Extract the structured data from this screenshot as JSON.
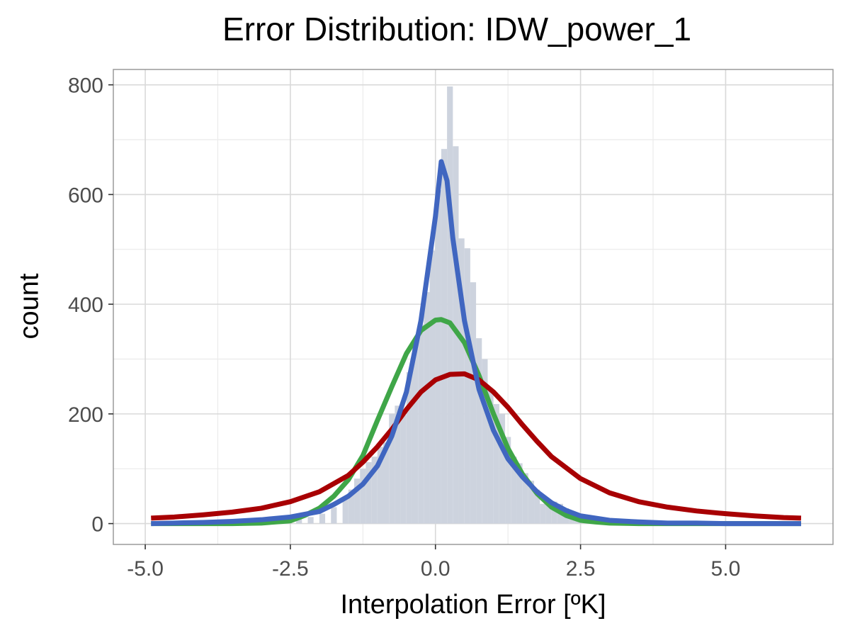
{
  "chart_data": {
    "type": "bar",
    "title": "Error Distribution: IDW_power_1",
    "xlabel": "Interpolation Error [ºK]",
    "ylabel": "count",
    "xlim": [
      -5.55,
      6.85
    ],
    "ylim": [
      -38,
      828
    ],
    "xticks": [
      -5.0,
      -2.5,
      0.0,
      2.5,
      5.0
    ],
    "xtick_labels": [
      "-5.0",
      "-2.5",
      "0.0",
      "2.5",
      "5.0"
    ],
    "yticks": [
      0,
      200,
      400,
      600,
      800
    ],
    "ytick_labels": [
      "0",
      "200",
      "400",
      "600",
      "800"
    ],
    "grid": true,
    "histogram": {
      "bin_width": 0.1,
      "color": "#cdd3de",
      "bins": [
        {
          "x": -3.45,
          "count": 2
        },
        {
          "x": -3.15,
          "count": 3
        },
        {
          "x": -2.85,
          "count": 4
        },
        {
          "x": -2.55,
          "count": 6
        },
        {
          "x": -2.35,
          "count": 9
        },
        {
          "x": -2.15,
          "count": 12
        },
        {
          "x": -1.95,
          "count": 18
        },
        {
          "x": -1.75,
          "count": 30
        },
        {
          "x": -1.55,
          "count": 48
        },
        {
          "x": -1.45,
          "count": 62
        },
        {
          "x": -1.35,
          "count": 82
        },
        {
          "x": -1.25,
          "count": 100
        },
        {
          "x": -1.15,
          "count": 112
        },
        {
          "x": -1.05,
          "count": 122
        },
        {
          "x": -0.95,
          "count": 140
        },
        {
          "x": -0.85,
          "count": 148
        },
        {
          "x": -0.75,
          "count": 200
        },
        {
          "x": -0.65,
          "count": 215
        },
        {
          "x": -0.55,
          "count": 198
        },
        {
          "x": -0.45,
          "count": 276
        },
        {
          "x": -0.35,
          "count": 323
        },
        {
          "x": -0.25,
          "count": 363
        },
        {
          "x": -0.15,
          "count": 422
        },
        {
          "x": -0.05,
          "count": 498
        },
        {
          "x": 0.05,
          "count": 608
        },
        {
          "x": 0.15,
          "count": 683
        },
        {
          "x": 0.25,
          "count": 797
        },
        {
          "x": 0.35,
          "count": 688
        },
        {
          "x": 0.45,
          "count": 520
        },
        {
          "x": 0.55,
          "count": 502
        },
        {
          "x": 0.65,
          "count": 440
        },
        {
          "x": 0.75,
          "count": 338
        },
        {
          "x": 0.85,
          "count": 300
        },
        {
          "x": 0.95,
          "count": 246
        },
        {
          "x": 1.05,
          "count": 218
        },
        {
          "x": 1.15,
          "count": 200
        },
        {
          "x": 1.25,
          "count": 158
        },
        {
          "x": 1.35,
          "count": 122
        },
        {
          "x": 1.45,
          "count": 110
        },
        {
          "x": 1.55,
          "count": 92
        },
        {
          "x": 1.65,
          "count": 78
        },
        {
          "x": 1.75,
          "count": 62
        },
        {
          "x": 1.85,
          "count": 36
        },
        {
          "x": 1.95,
          "count": 38
        },
        {
          "x": 2.05,
          "count": 40
        },
        {
          "x": 2.15,
          "count": 36
        },
        {
          "x": 2.25,
          "count": 28
        },
        {
          "x": 2.35,
          "count": 12
        },
        {
          "x": 2.45,
          "count": 8
        },
        {
          "x": 2.65,
          "count": 5
        },
        {
          "x": 2.95,
          "count": 3
        },
        {
          "x": 3.35,
          "count": 2
        }
      ]
    },
    "series": [
      {
        "color": "#3fa648",
        "x": [
          -4.9,
          -4.5,
          -4.0,
          -3.5,
          -3.0,
          -2.5,
          -2.25,
          -2.0,
          -1.75,
          -1.5,
          -1.25,
          -1.0,
          -0.75,
          -0.5,
          -0.25,
          0.0,
          0.1,
          0.25,
          0.5,
          0.75,
          1.0,
          1.25,
          1.5,
          1.75,
          2.0,
          2.25,
          2.5,
          2.75,
          3.0,
          3.5,
          4.0,
          4.5,
          5.0,
          5.5,
          6.0,
          6.3
        ],
        "y": [
          0,
          0,
          0,
          0,
          1,
          5,
          15,
          28,
          50,
          80,
          124,
          188,
          250,
          310,
          352,
          371,
          372,
          366,
          330,
          270,
          200,
          137,
          90,
          55,
          30,
          15,
          6,
          3,
          1,
          0,
          0,
          0,
          0,
          0,
          0,
          0
        ]
      },
      {
        "color": "#a80003",
        "x": [
          -4.9,
          -4.5,
          -4.0,
          -3.5,
          -3.0,
          -2.5,
          -2.0,
          -1.5,
          -1.25,
          -1.0,
          -0.75,
          -0.5,
          -0.25,
          0.0,
          0.25,
          0.5,
          0.75,
          1.0,
          1.25,
          1.5,
          1.75,
          2.0,
          2.5,
          3.0,
          3.5,
          4.0,
          4.5,
          5.0,
          5.5,
          6.0,
          6.3
        ],
        "y": [
          10,
          12,
          16,
          21,
          28,
          40,
          58,
          88,
          112,
          140,
          172,
          208,
          240,
          262,
          272,
          273,
          262,
          240,
          212,
          180,
          150,
          122,
          82,
          56,
          40,
          30,
          23,
          18,
          14,
          11,
          10
        ]
      },
      {
        "color": "#4066c0",
        "x": [
          -4.9,
          -4.5,
          -4.0,
          -3.5,
          -3.0,
          -2.5,
          -2.0,
          -1.75,
          -1.5,
          -1.25,
          -1.0,
          -0.75,
          -0.5,
          -0.25,
          0.0,
          0.1,
          0.2,
          0.3,
          0.5,
          0.75,
          1.0,
          1.25,
          1.5,
          1.75,
          2.0,
          2.25,
          2.5,
          3.0,
          3.5,
          4.0,
          4.5,
          5.0,
          5.5,
          6.0,
          6.3
        ],
        "y": [
          0,
          1,
          2,
          4,
          7,
          12,
          22,
          35,
          50,
          72,
          105,
          160,
          240,
          370,
          560,
          660,
          625,
          520,
          370,
          245,
          170,
          118,
          85,
          58,
          38,
          24,
          14,
          6,
          3,
          1,
          1,
          0,
          0,
          0,
          0
        ]
      }
    ]
  }
}
